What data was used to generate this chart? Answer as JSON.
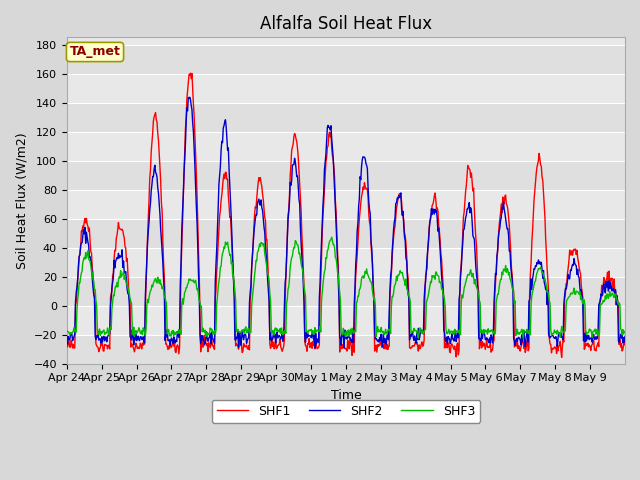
{
  "title": "Alfalfa Soil Heat Flux",
  "xlabel": "Time",
  "ylabel": "Soil Heat Flux (W/m2)",
  "ylim": [
    -40,
    185
  ],
  "yticks": [
    -40,
    -20,
    0,
    20,
    40,
    60,
    80,
    100,
    120,
    140,
    160,
    180
  ],
  "annotation_text": "TA_met",
  "annotation_color": "#8B0000",
  "annotation_bg": "#FFFFCC",
  "annotation_border": "#999900",
  "line_colors": {
    "SHF1": "#FF0000",
    "SHF2": "#0000CC",
    "SHF3": "#00BB00"
  },
  "legend_labels": [
    "SHF1",
    "SHF2",
    "SHF3"
  ],
  "bg_color": "#D8D8D8",
  "plot_bg_color": "#E8E8E8",
  "grid_color": "#FFFFFF",
  "n_days": 16,
  "xtick_labels": [
    "Apr 24",
    "Apr 25",
    "Apr 26",
    "Apr 27",
    "Apr 28",
    "Apr 29",
    "Apr 30",
    "May 1",
    "May 2",
    "May 3",
    "May 4",
    "May 5",
    "May 6",
    "May 7",
    "May 8",
    "May 9"
  ],
  "title_fontsize": 12,
  "axis_label_fontsize": 9,
  "tick_fontsize": 8,
  "legend_fontsize": 9,
  "shf1_amps": [
    60,
    55,
    130,
    162,
    90,
    88,
    116,
    118,
    85,
    76,
    74,
    95,
    75,
    101,
    40,
    20
  ],
  "shf2_amps": [
    50,
    35,
    93,
    145,
    125,
    73,
    100,
    124,
    103,
    77,
    68,
    68,
    67,
    30,
    29,
    15
  ],
  "shf3_amps": [
    35,
    22,
    18,
    18,
    43,
    43,
    43,
    45,
    22,
    22,
    22,
    22,
    25,
    25,
    10,
    8
  ],
  "shf1_night": -28,
  "shf2_night": -22,
  "shf3_night": -18
}
